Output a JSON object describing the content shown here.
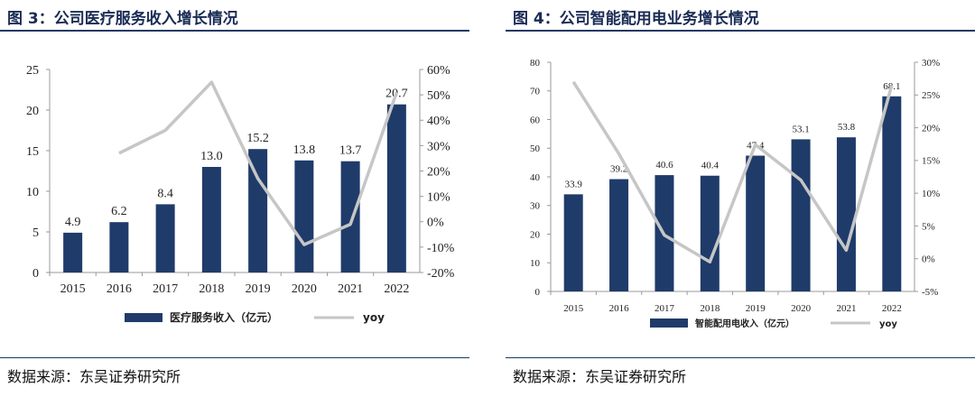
{
  "colors": {
    "bar": "#1f3b6a",
    "line": "#c6c6c6",
    "rule": "#1f3864",
    "title": "#1a2b55"
  },
  "chart_data": [
    {
      "type": "bar",
      "title": "图 3：公司医疗服务收入增长情况",
      "source": "数据来源：东吴证券研究所",
      "categories": [
        "2015",
        "2016",
        "2017",
        "2018",
        "2019",
        "2020",
        "2021",
        "2022"
      ],
      "series": [
        {
          "name": "医疗服务收入（亿元）",
          "type": "bar",
          "axis": "left",
          "values": [
            4.9,
            6.2,
            8.4,
            13.0,
            15.2,
            13.8,
            13.7,
            20.7
          ],
          "labels": [
            "4.9",
            "6.2",
            "8.4",
            "13.0",
            "15.2",
            "13.8",
            "13.7",
            "20.7"
          ]
        },
        {
          "name": "yoy",
          "type": "line",
          "axis": "right",
          "values": [
            null,
            27.0,
            36.0,
            55.0,
            17.0,
            -9.0,
            -1.0,
            51.0
          ]
        }
      ],
      "ylim": [
        0,
        25
      ],
      "yticks": [
        "0",
        "5",
        "10",
        "15",
        "20",
        "25"
      ],
      "y2lim": [
        -20,
        60
      ],
      "y2ticks": [
        "-20%",
        "-10%",
        "0%",
        "10%",
        "20%",
        "30%",
        "40%",
        "50%",
        "60%"
      ],
      "legend": "bottom",
      "grid": false
    },
    {
      "type": "bar",
      "title": "图 4：公司智能配用电业务增长情况",
      "source": "数据来源：东吴证券研究所",
      "categories": [
        "2015",
        "2016",
        "2017",
        "2018",
        "2019",
        "2020",
        "2021",
        "2022"
      ],
      "series": [
        {
          "name": "智能配用电收入（亿元）",
          "type": "bar",
          "axis": "left",
          "values": [
            33.9,
            39.2,
            40.6,
            40.4,
            47.4,
            53.1,
            53.8,
            68.1
          ],
          "labels": [
            "33.9",
            "39.2",
            "40.6",
            "40.4",
            "47.4",
            "53.1",
            "53.8",
            "68.1"
          ]
        },
        {
          "name": "yoy",
          "type": "line",
          "axis": "right",
          "values": [
            27.0,
            16.0,
            3.6,
            -0.5,
            17.4,
            12.0,
            1.3,
            26.5
          ]
        }
      ],
      "ylim": [
        0,
        80
      ],
      "yticks": [
        "0",
        "10",
        "20",
        "30",
        "40",
        "50",
        "60",
        "70",
        "80"
      ],
      "y2lim": [
        -5,
        30
      ],
      "y2ticks": [
        "-5%",
        "0%",
        "5%",
        "10%",
        "15%",
        "20%",
        "25%",
        "30%"
      ],
      "legend": "bottom",
      "grid": false
    }
  ]
}
